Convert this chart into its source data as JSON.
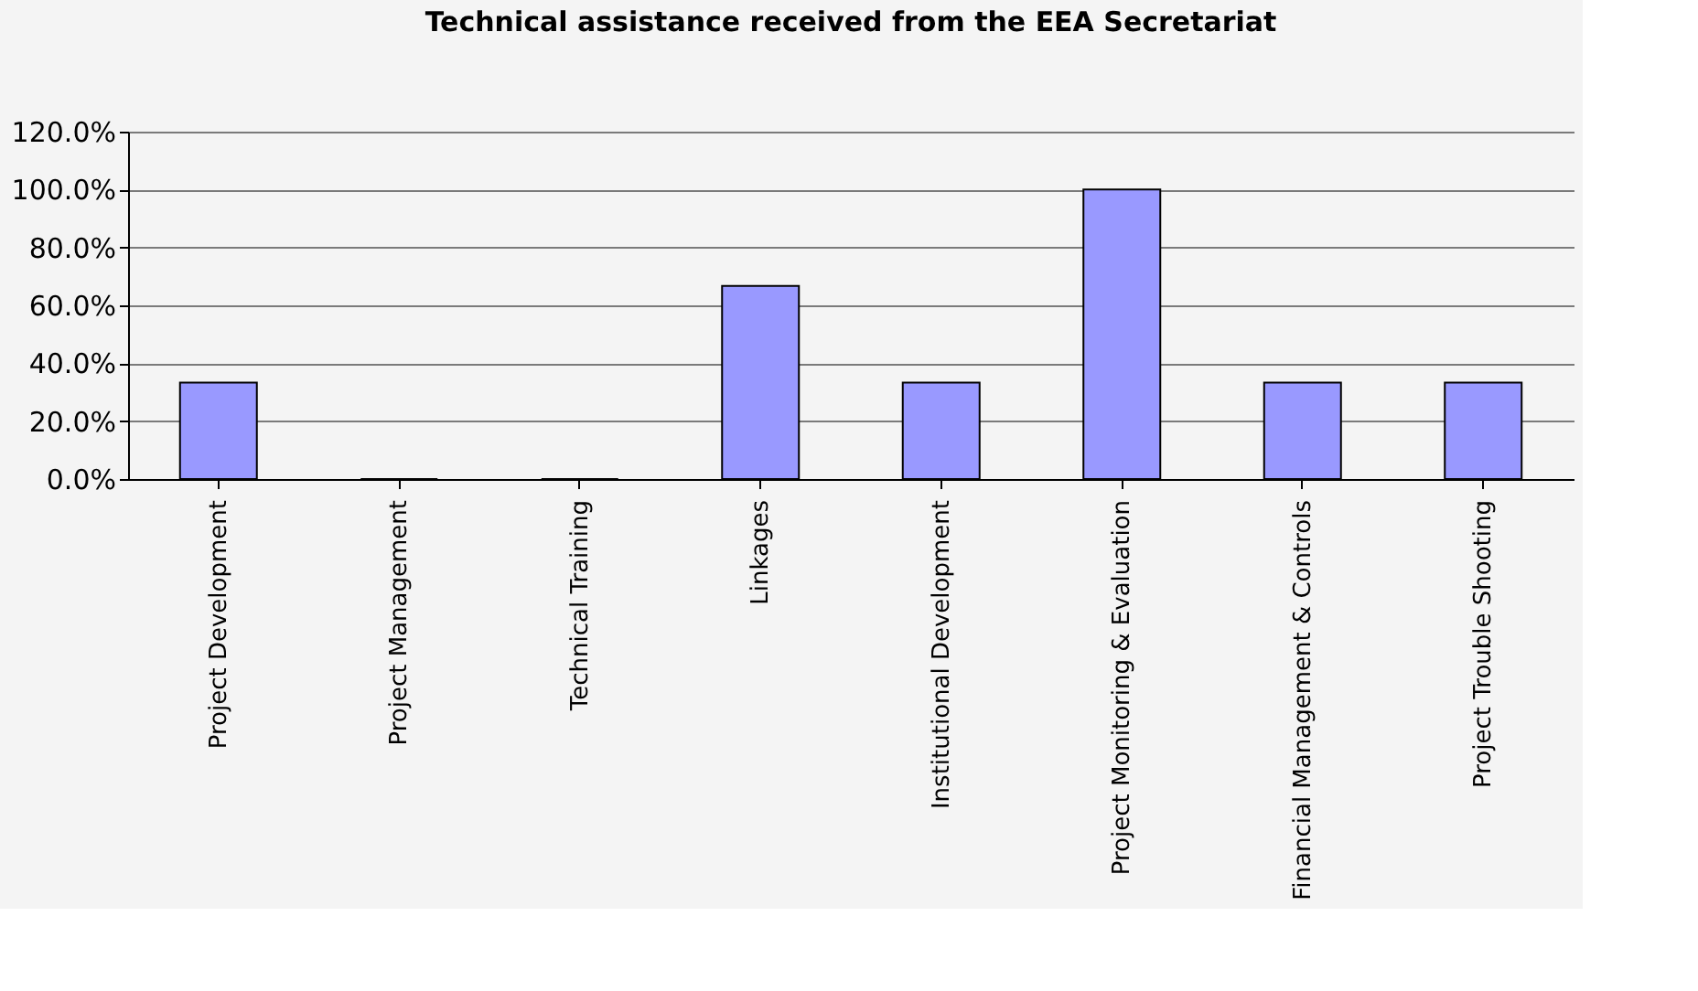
{
  "chart_data": {
    "type": "bar",
    "title": "Technical assistance received from the EEA Secretariat",
    "categories": [
      "Project Development",
      "Project Management",
      "Technical Training",
      "Linkages",
      "Institutional Development",
      "Project Monitoring & Evaluation",
      "Financial Management & Controls",
      "Project Trouble Shooting"
    ],
    "values": [
      33.3,
      0,
      0,
      66.7,
      33.3,
      100,
      33.3,
      33.3
    ],
    "color": "#9999ff",
    "ylim": [
      0,
      120
    ],
    "yticks": [
      {
        "value": 0,
        "label": "0.0%"
      },
      {
        "value": 20,
        "label": "20.0%"
      },
      {
        "value": 40,
        "label": "40.0%"
      },
      {
        "value": 60,
        "label": "60.0%"
      },
      {
        "value": 80,
        "label": "80.0%"
      },
      {
        "value": 100,
        "label": "100.0%"
      },
      {
        "value": 120,
        "label": "120.0%"
      }
    ],
    "grid": "y",
    "legend": false
  }
}
